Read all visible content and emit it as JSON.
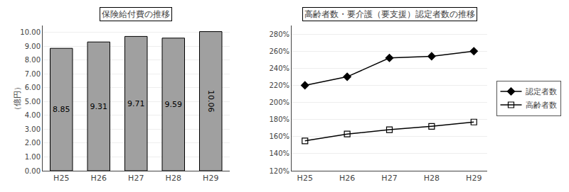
{
  "chart_data": [
    {
      "type": "bar",
      "title": "保険給付費の推移",
      "y_label": "（億円）",
      "categories": [
        "H25",
        "H26",
        "H27",
        "H28",
        "H29"
      ],
      "values": [
        8.85,
        9.31,
        9.71,
        9.59,
        10.06
      ],
      "color": "#a0a0a0",
      "ylim": [
        0.0,
        10.5
      ],
      "yticks": [
        {
          "value": 0.0,
          "label": "0.00"
        },
        {
          "value": 1.0,
          "label": "1.00"
        },
        {
          "value": 2.0,
          "label": "2.00"
        },
        {
          "value": 3.0,
          "label": "3.00"
        },
        {
          "value": 4.0,
          "label": "4.00"
        },
        {
          "value": 5.0,
          "label": "5.00"
        },
        {
          "value": 6.0,
          "label": "6.00"
        },
        {
          "value": 7.0,
          "label": "7.00"
        },
        {
          "value": 8.0,
          "label": "8.00"
        },
        {
          "value": 9.0,
          "label": "9.00"
        },
        {
          "value": 10.0,
          "label": "10.00"
        }
      ],
      "data_labels": true,
      "grid": true
    },
    {
      "type": "line",
      "title": "高齢者数・要介護（要支援）認定者数の推移",
      "categories": [
        "H25",
        "H26",
        "H27",
        "H28",
        "H29"
      ],
      "series": [
        {
          "name": "認定者数",
          "color": "#000000",
          "marker": "diamond",
          "values": [
            220,
            230,
            252,
            254,
            260
          ]
        },
        {
          "name": "高齢者数",
          "color": "#000000",
          "marker": "square-open",
          "values": [
            155,
            163,
            168,
            172,
            177
          ]
        }
      ],
      "ylim": [
        120,
        290
      ],
      "yticks": [
        {
          "value": 120,
          "label": "120%"
        },
        {
          "value": 140,
          "label": "140%"
        },
        {
          "value": 160,
          "label": "160%"
        },
        {
          "value": 180,
          "label": "180%"
        },
        {
          "value": 200,
          "label": "200%"
        },
        {
          "value": 220,
          "label": "220%"
        },
        {
          "value": 240,
          "label": "240%"
        },
        {
          "value": 260,
          "label": "260%"
        },
        {
          "value": 280,
          "label": "280%"
        }
      ],
      "legend": "right",
      "grid": true
    }
  ]
}
